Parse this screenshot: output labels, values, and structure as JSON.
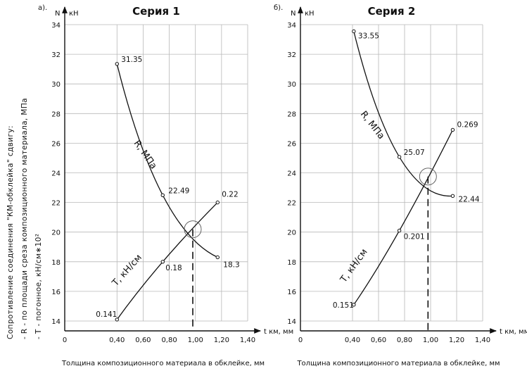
{
  "y_axis_title_lines": [
    "Сопротивление соединения \"КМ-обклейка\" сдвигу:",
    "- R - по площади среза композиционного материала, МПа",
    "- T - погонное, кН/см∗10²"
  ],
  "chart_data": [
    {
      "type": "line",
      "panel_letter": "а).",
      "title": "Серия 1",
      "y_axis_name": "N",
      "y_unit": "кН",
      "x_axis_name": "t км, мм",
      "xlabel": "Толщина композиционного материала в обклейке, мм",
      "xlim": [
        0,
        1.4
      ],
      "ylim": [
        14,
        34
      ],
      "x_ticks": [
        0,
        0.4,
        0.6,
        0.8,
        1.0,
        1.2,
        1.4
      ],
      "x_tick_labels": [
        "0",
        "0,40",
        "0,60",
        "0,80",
        "1,00",
        "1,20",
        "1,40"
      ],
      "y_ticks": [
        14,
        16,
        18,
        20,
        22,
        24,
        26,
        28,
        30,
        32,
        34
      ],
      "grid": true,
      "intersection_x": 0.98,
      "series": [
        {
          "name": "R, МПа",
          "x": [
            0.4,
            0.75,
            1.17
          ],
          "y": [
            31.35,
            22.49,
            18.3
          ],
          "labels": [
            "31.35",
            "22.49",
            "18.3"
          ]
        },
        {
          "name": "T, кН/см",
          "x": [
            0.4,
            0.75,
            1.17
          ],
          "y": [
            14.1,
            18.0,
            22.0
          ],
          "labels": [
            "0.141",
            "0.18",
            "0.22"
          ]
        }
      ]
    },
    {
      "type": "line",
      "panel_letter": "б).",
      "title": "Серия 2",
      "y_axis_name": "N",
      "y_unit": "кН",
      "x_axis_name": "t км, мм",
      "xlabel": "Толщина композиционного материала в обклейке, мм",
      "xlim": [
        0,
        1.4
      ],
      "ylim": [
        14,
        34
      ],
      "x_ticks": [
        0,
        0.4,
        0.6,
        0.8,
        1.0,
        1.2,
        1.4
      ],
      "x_tick_labels": [
        "0",
        "0,40",
        "0,60",
        "0,80",
        "1,00",
        "1,20",
        "1,40"
      ],
      "y_ticks": [
        14,
        16,
        18,
        20,
        22,
        24,
        26,
        28,
        30,
        32,
        34
      ],
      "grid": true,
      "intersection_x": 0.98,
      "series": [
        {
          "name": "R, МПа",
          "x": [
            0.41,
            0.76,
            1.17
          ],
          "y": [
            33.55,
            25.07,
            22.44
          ],
          "labels": [
            "33.55",
            "25.07",
            "22.44"
          ]
        },
        {
          "name": "T, кН/см",
          "x": [
            0.41,
            0.76,
            1.17
          ],
          "y": [
            15.1,
            20.1,
            26.9
          ],
          "labels": [
            "0.151",
            "0.201",
            "0.269"
          ]
        }
      ]
    }
  ]
}
